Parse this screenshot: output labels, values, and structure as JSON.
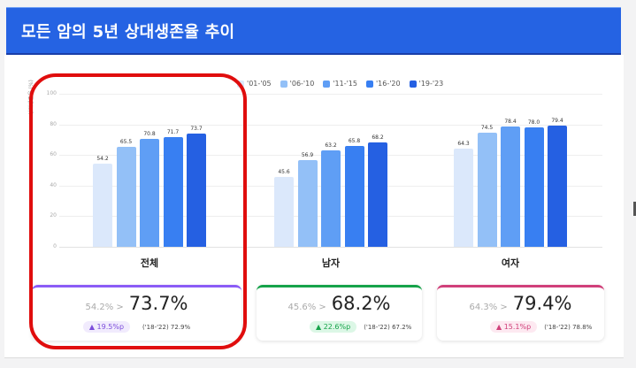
{
  "header": {
    "title": "모든 암의 5년 상대생존율 추이"
  },
  "legend": [
    {
      "label": "'01-'05",
      "color": "#dbe8fb"
    },
    {
      "label": "'06-'10",
      "color": "#93c0f7"
    },
    {
      "label": "'11-'15",
      "color": "#5f9ef5"
    },
    {
      "label": "'16-'20",
      "color": "#387ff2"
    },
    {
      "label": "'19-'23",
      "color": "#2560e2"
    }
  ],
  "chart_data": {
    "type": "bar",
    "title": "모든 암의 5년 상대생존율 추이",
    "xlabel": "",
    "ylabel": "상대생존율 (%)",
    "ylim": [
      0,
      100
    ],
    "yticks": [
      0,
      20,
      40,
      60,
      80,
      100
    ],
    "grid": true,
    "legend_position": "top-right",
    "categories": [
      "전체",
      "남자",
      "여자"
    ],
    "series": [
      {
        "name": "'01-'05",
        "values": [
          54.2,
          45.6,
          64.3
        ]
      },
      {
        "name": "'06-'10",
        "values": [
          65.5,
          56.9,
          74.5
        ]
      },
      {
        "name": "'11-'15",
        "values": [
          70.8,
          63.2,
          78.4
        ]
      },
      {
        "name": "'16-'20",
        "values": [
          71.7,
          65.8,
          78.0
        ]
      },
      {
        "name": "'19-'23",
        "values": [
          73.7,
          68.2,
          79.4
        ]
      }
    ]
  },
  "chart": {
    "y_axis_title": "상대생존율 (%)",
    "ticks": [
      "100",
      "80",
      "60",
      "40",
      "20",
      "0"
    ],
    "groups": [
      {
        "label": "전체",
        "values": [
          "54.2",
          "65.5",
          "70.8",
          "71.7",
          "73.7"
        ]
      },
      {
        "label": "남자",
        "values": [
          "45.6",
          "56.9",
          "63.2",
          "65.8",
          "68.2"
        ]
      },
      {
        "label": "여자",
        "values": [
          "64.3",
          "74.5",
          "78.4",
          "78.0",
          "79.4"
        ]
      }
    ]
  },
  "cards": [
    {
      "prev": "54.2% >",
      "current": "73.7%",
      "delta": "▲ 19.5%p",
      "ref": "('18-'22) 72.9%",
      "accent": "#8b5cf6",
      "delta_bg": "#f1ebfd",
      "delta_color": "#7c4ddb"
    },
    {
      "prev": "45.6% >",
      "current": "68.2%",
      "delta": "▲ 22.6%p",
      "ref": "('18-'22) 67.2%",
      "accent": "#16a34a",
      "delta_bg": "#dcf7e6",
      "delta_color": "#16a34a"
    },
    {
      "prev": "64.3% >",
      "current": "79.4%",
      "delta": "▲ 15.1%p",
      "ref": "('18-'22) 78.8%",
      "accent": "#d0407a",
      "delta_bg": "#fde9f1",
      "delta_color": "#d0407a"
    }
  ]
}
